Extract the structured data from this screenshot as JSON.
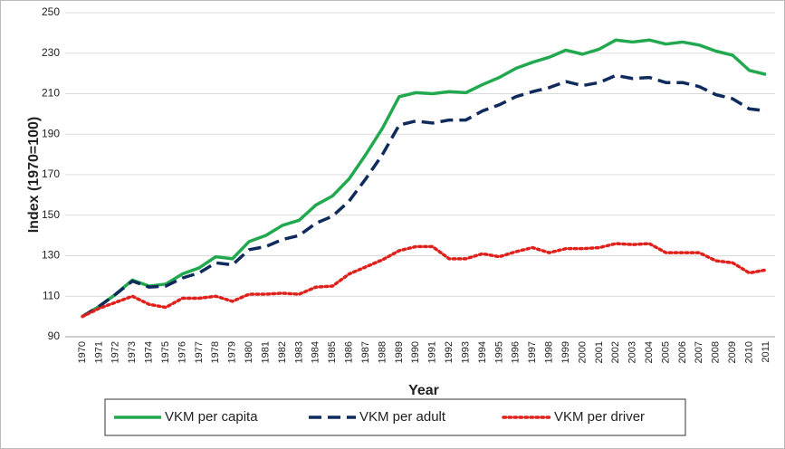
{
  "chart_data": {
    "type": "line",
    "ylabel": "Index (1970=100)",
    "xlabel": "Year",
    "categories": [
      "1970",
      "1971",
      "1972",
      "1973",
      "1974",
      "1975",
      "1976",
      "1977",
      "1978",
      "1979",
      "1980",
      "1981",
      "1982",
      "1983",
      "1984",
      "1985",
      "1986",
      "1987",
      "1988",
      "1989",
      "1990",
      "1991",
      "1992",
      "1993",
      "1994",
      "1995",
      "1996",
      "1997",
      "1998",
      "1999",
      "2000",
      "2001",
      "2002",
      "2003",
      "2004",
      "2005",
      "2006",
      "2007",
      "2008",
      "2009",
      "2010",
      "2011"
    ],
    "series": [
      {
        "name": "VKM per capita",
        "color": "#22a94f",
        "style": "solid",
        "values": [
          100,
          105,
          111,
          118,
          115,
          116,
          121,
          124,
          129.5,
          128.5,
          137,
          140,
          145,
          147.5,
          155,
          159.5,
          168,
          180,
          193,
          208.5,
          210.5,
          210,
          211,
          210.5,
          214.5,
          218,
          222.5,
          225.5,
          228,
          231.5,
          229.5,
          232,
          236.5,
          235.5,
          236.5,
          234.5,
          235.5,
          234,
          231,
          229,
          221.5,
          219.5
        ]
      },
      {
        "name": "VKM per adult",
        "color": "#0f2a5c",
        "style": "dashed",
        "values": [
          100,
          105,
          111,
          117.5,
          114.5,
          115,
          119,
          121.5,
          126.5,
          125.5,
          133,
          134.5,
          138,
          140,
          146,
          149.5,
          157,
          168,
          180,
          194.5,
          196.5,
          195.5,
          197,
          197,
          201.5,
          204.5,
          208.5,
          211,
          213,
          216,
          214,
          215.5,
          219,
          217.5,
          218,
          215.5,
          215.5,
          213.5,
          209.5,
          207.5,
          202.5,
          201.5
        ]
      },
      {
        "name": "VKM per driver",
        "color": "#e0201b",
        "style": "dotted",
        "values": [
          100,
          104,
          107,
          110,
          106,
          104.5,
          109,
          109,
          110,
          107.5,
          111,
          111,
          111.5,
          111,
          114.5,
          115,
          121,
          124.5,
          128,
          132.5,
          134.5,
          134.5,
          128.5,
          128.5,
          131,
          129.5,
          132,
          134,
          131.5,
          133.5,
          133.5,
          134,
          136,
          135.5,
          136,
          131.5,
          131.5,
          131.5,
          127.5,
          126.5,
          121.5,
          123
        ]
      }
    ],
    "ylim": [
      90,
      250
    ],
    "yticks": [
      90,
      110,
      130,
      150,
      170,
      190,
      210,
      230,
      250
    ],
    "grid": true
  }
}
